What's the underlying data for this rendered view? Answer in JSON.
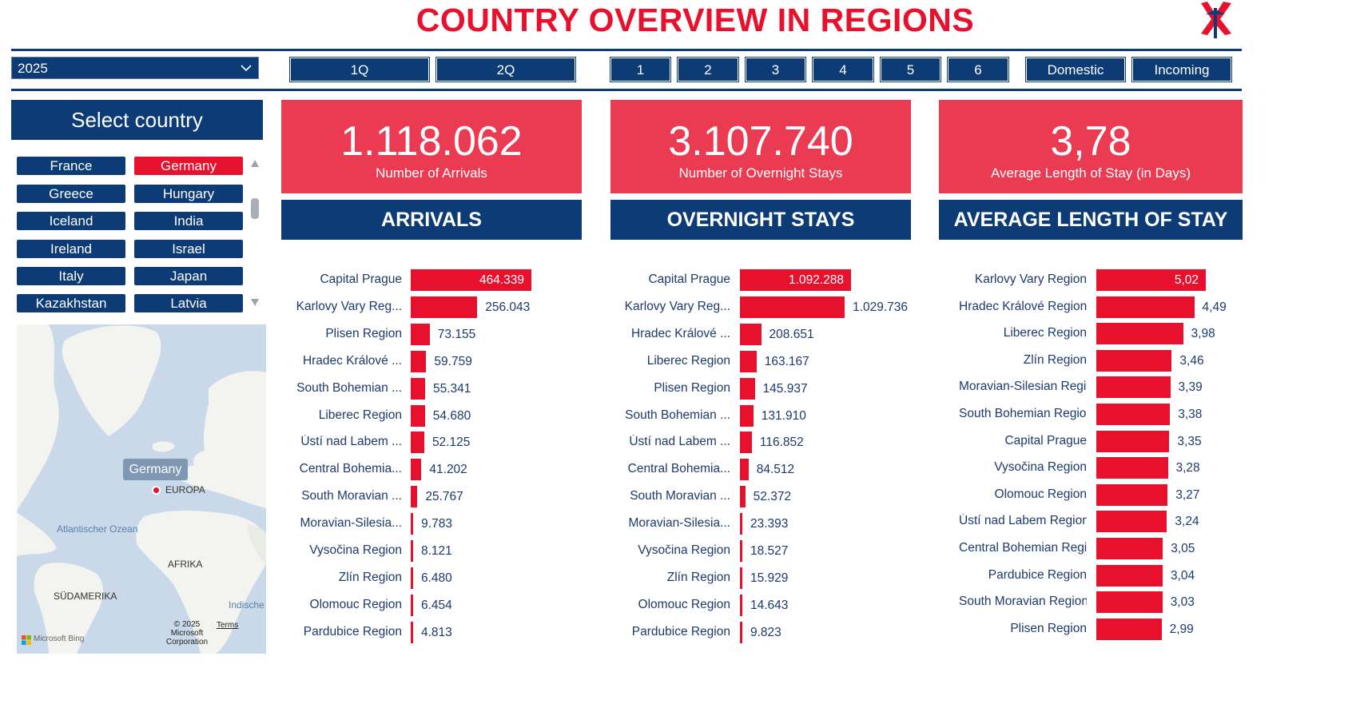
{
  "header": {
    "title": "COUNTRY OVERVIEW IN REGIONS"
  },
  "filters": {
    "year": "2025",
    "quarters": [
      "1Q",
      "2Q"
    ],
    "months": [
      "1",
      "2",
      "3",
      "4",
      "5",
      "6"
    ],
    "types": [
      "Domestic",
      "Incoming"
    ]
  },
  "country_panel": {
    "title": "Select country",
    "countries": [
      "France",
      "Germany",
      "Greece",
      "Hungary",
      "Iceland",
      "India",
      "Ireland",
      "Israel",
      "Italy",
      "Japan",
      "Kazakhstan",
      "Latvia"
    ],
    "selected": "Germany"
  },
  "map": {
    "selected_label": "Germany",
    "labels": {
      "europa": "EUROPA",
      "atlantic": "Atlantischer Ozean",
      "africa": "AFRIKA",
      "south_america": "SÜDAMERIKA",
      "indian": "Indische"
    },
    "credit": {
      "brand": "Microsoft Bing",
      "copyright_line1": "© 2025",
      "copyright_line2": "Microsoft",
      "copyright_line3": "Corporation",
      "terms": "Terms"
    }
  },
  "kpis": [
    {
      "value": "1.118.062",
      "label": "Number of Arrivals"
    },
    {
      "value": "3.107.740",
      "label": "Number of Overnight Stays"
    },
    {
      "value": "3,78",
      "label": "Average Length of Stay (in Days)"
    }
  ],
  "colors": {
    "navy": "#0c3b76",
    "red": "#e8112d",
    "kpi_red": "#eb3b52"
  },
  "chart_data": [
    {
      "type": "bar",
      "title": "ARRIVALS",
      "categories": [
        "Capital Prague",
        "Karlovy Vary Reg...",
        "Plisen Region",
        "Hradec Králové ...",
        "South Bohemian ...",
        "Liberec Region",
        "Ústí nad Labem ...",
        "Central Bohemia...",
        "South Moravian ...",
        "Moravian-Silesia...",
        "Vysočina Region",
        "Zlín Region",
        "Olomouc Region",
        "Pardubice Region"
      ],
      "values": [
        464339,
        256043,
        73155,
        59759,
        55341,
        54680,
        52125,
        41202,
        25767,
        9783,
        8121,
        6480,
        6454,
        4813
      ],
      "value_labels": [
        "464.339",
        "256.043",
        "73.155",
        "59.759",
        "55.341",
        "54.680",
        "52.125",
        "41.202",
        "25.767",
        "9.783",
        "8.121",
        "6.480",
        "6.454",
        "4.813"
      ]
    },
    {
      "type": "bar",
      "title": "OVERNIGHT STAYS",
      "categories": [
        "Capital Prague",
        "Karlovy Vary Reg...",
        "Hradec Králové ...",
        "Liberec Region",
        "Plisen Region",
        "South Bohemian ...",
        "Ústí nad Labem ...",
        "Central Bohemia...",
        "South Moravian ...",
        "Moravian-Silesia...",
        "Vysočina Region",
        "Zlín Region",
        "Olomouc Region",
        "Pardubice Region"
      ],
      "values": [
        1092288,
        1029736,
        208651,
        163167,
        145937,
        131910,
        116852,
        84512,
        52372,
        23393,
        18527,
        15929,
        14643,
        9823
      ],
      "value_labels": [
        "1.092.288",
        "1.029.736",
        "208.651",
        "163.167",
        "145.937",
        "131.910",
        "116.852",
        "84.512",
        "52.372",
        "23.393",
        "18.527",
        "15.929",
        "14.643",
        "9.823"
      ]
    },
    {
      "type": "bar",
      "title": "AVERAGE LENGTH OF STAY",
      "categories": [
        "Karlovy Vary Region",
        "Hradec Králové Region",
        "Liberec Region",
        "Zlín Region",
        "Moravian-Silesian Region",
        "South Bohemian Region",
        "Capital Prague",
        "Vysočina Region",
        "Olomouc Region",
        "Ústí nad Labem Region",
        "Central Bohemian Region",
        "Pardubice Region",
        "South Moravian Region",
        "Plisen Region"
      ],
      "values": [
        5.02,
        4.49,
        3.98,
        3.46,
        3.39,
        3.38,
        3.35,
        3.28,
        3.27,
        3.24,
        3.05,
        3.04,
        3.03,
        2.99
      ],
      "value_labels": [
        "5,02",
        "4,49",
        "3,98",
        "3,46",
        "3,39",
        "3,38",
        "3,35",
        "3,28",
        "3,27",
        "3,24",
        "3,05",
        "3,04",
        "3,03",
        "2,99"
      ]
    }
  ]
}
